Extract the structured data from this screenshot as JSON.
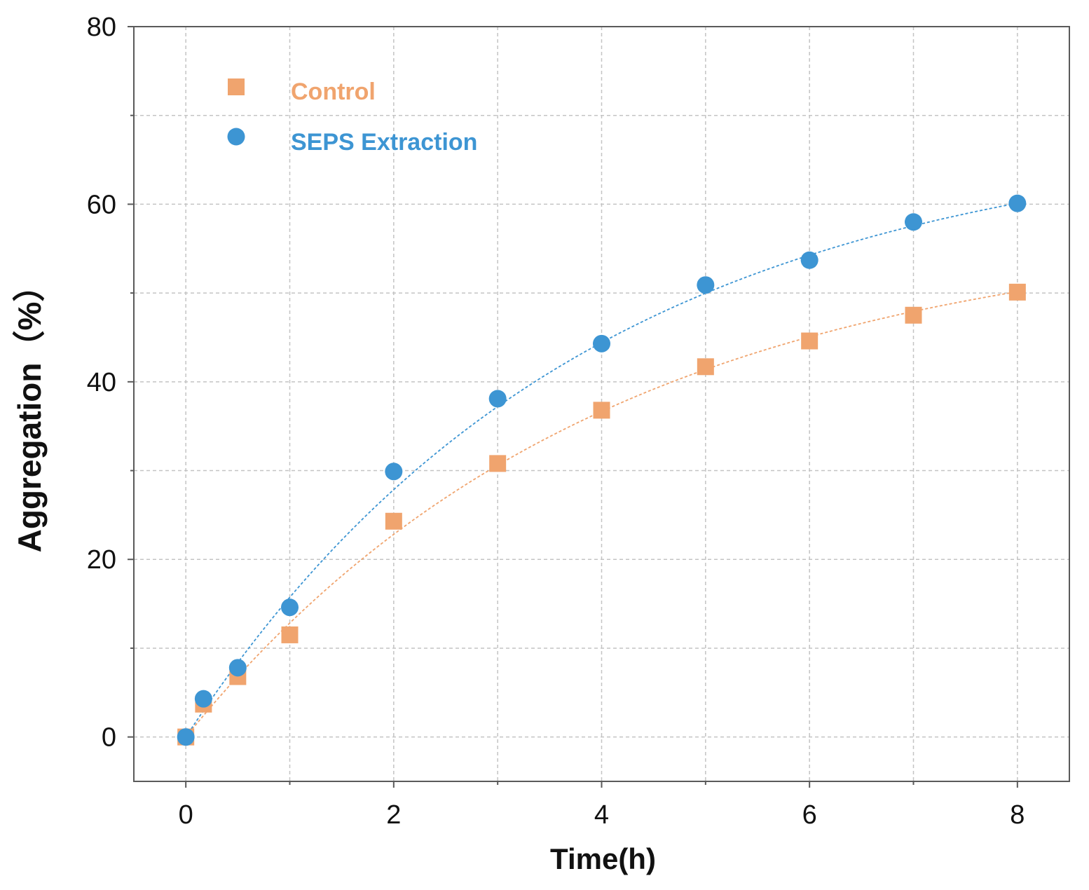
{
  "chart_data": {
    "type": "scatter",
    "title": "",
    "xlabel": "Time(h)",
    "ylabel": "Aggregation（%）",
    "xlim": [
      -0.5,
      8.5
    ],
    "ylim": [
      -5,
      80
    ],
    "xticks": [
      0,
      2,
      4,
      6,
      8
    ],
    "yticks": [
      0,
      20,
      40,
      60,
      80
    ],
    "minor_x_grid": [
      1,
      3,
      5,
      7
    ],
    "minor_y_grid": [
      10,
      30,
      50,
      70
    ],
    "grid": true,
    "legend_position": "top-left",
    "series": [
      {
        "name": "Control",
        "marker": "square",
        "color": "#f0a46e",
        "x": [
          0,
          0.17,
          0.5,
          1,
          2,
          3,
          4,
          5,
          6,
          7,
          8
        ],
        "y": [
          0,
          3.7,
          6.8,
          11.5,
          24.3,
          30.8,
          36.8,
          41.7,
          44.6,
          47.5,
          50.1
        ],
        "fit": {
          "a": 58.0,
          "k": 0.25
        }
      },
      {
        "name": "SEPS Extraction",
        "marker": "circle",
        "color": "#3d95d3",
        "x": [
          0,
          0.17,
          0.5,
          1,
          2,
          3,
          4,
          5,
          6,
          7,
          8
        ],
        "y": [
          0,
          4.3,
          7.8,
          14.6,
          29.9,
          38.1,
          44.3,
          50.9,
          53.7,
          58.0,
          60.1
        ],
        "fit": {
          "a": 68.7,
          "k": 0.26
        }
      }
    ]
  }
}
